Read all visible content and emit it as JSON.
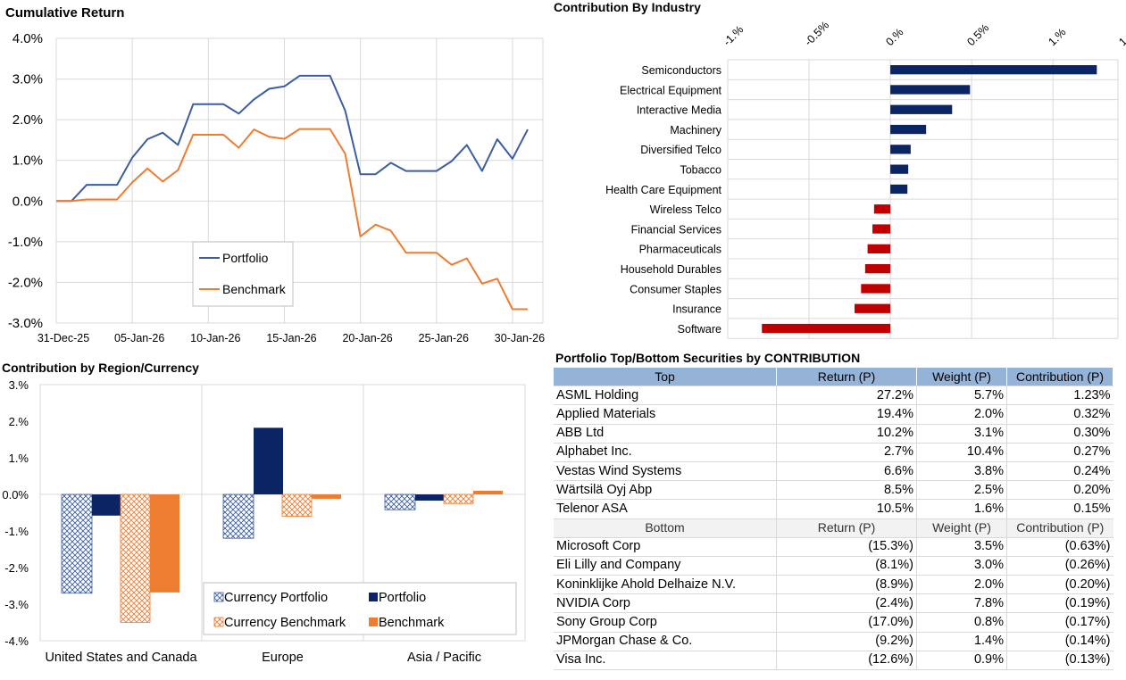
{
  "cumulative_return": {
    "title": "Cumulative Return"
  },
  "industry": {
    "title": "Contribution By Industry"
  },
  "region": {
    "title": "Contribution by Region/Currency"
  },
  "securities": {
    "title": "Portfolio Top/Bottom Securities by CONTRIBUTION",
    "top_header": [
      "Top",
      "Return (P)",
      "Weight (P)",
      "Contribution (P)"
    ],
    "top_rows": [
      [
        "ASML Holding",
        "27.2%",
        "5.7%",
        "1.23%"
      ],
      [
        "Applied Materials",
        "19.4%",
        "2.0%",
        "0.32%"
      ],
      [
        "ABB Ltd",
        "10.2%",
        "3.1%",
        "0.30%"
      ],
      [
        "Alphabet Inc.",
        "2.7%",
        "10.4%",
        "0.27%"
      ],
      [
        "Vestas Wind Systems",
        "6.6%",
        "3.8%",
        "0.24%"
      ],
      [
        "Wärtsilä Oyj Abp",
        "8.5%",
        "2.5%",
        "0.20%"
      ],
      [
        "Telenor ASA",
        "10.5%",
        "1.6%",
        "0.15%"
      ]
    ],
    "bottom_header": [
      "Bottom",
      "Return (P)",
      "Weight (P)",
      "Contribution (P)"
    ],
    "bottom_rows": [
      [
        "Microsoft Corp",
        "(15.3%)",
        "3.5%",
        "(0.63%)"
      ],
      [
        "Eli Lilly and Company",
        "(8.1%)",
        "3.0%",
        "(0.26%)"
      ],
      [
        "Koninklijke Ahold Delhaize N.V.",
        "(8.9%)",
        "2.0%",
        "(0.20%)"
      ],
      [
        "NVIDIA Corp",
        "(2.4%)",
        "7.8%",
        "(0.19%)"
      ],
      [
        "Sony Group Corp",
        "(17.0%)",
        "0.8%",
        "(0.17%)"
      ],
      [
        "JPMorgan Chase & Co.",
        "(9.2%)",
        "1.4%",
        "(0.14%)"
      ],
      [
        "Visa Inc.",
        "(12.6%)",
        "0.9%",
        "(0.13%)"
      ]
    ]
  },
  "chart_data": [
    {
      "type": "line",
      "title": "Cumulative Return",
      "x_tick_labels": [
        "31-Dec-25",
        "05-Jan-26",
        "10-Jan-26",
        "15-Jan-26",
        "20-Jan-26",
        "25-Jan-26",
        "30-Jan-26"
      ],
      "x_tick_positions": [
        0,
        5,
        10,
        15,
        20,
        25,
        30
      ],
      "y_tick_labels": [
        "4.0%",
        "3.0%",
        "2.0%",
        "1.0%",
        "0.0%",
        "-1.0%",
        "-2.0%",
        "-3.0%"
      ],
      "ylim": [
        -3.0,
        4.0
      ],
      "xlim": [
        0,
        32
      ],
      "grid": true,
      "legend_position": "lower-center",
      "series": [
        {
          "name": "Portfolio",
          "color": "#3b5ea0",
          "x": [
            0,
            1,
            2,
            3,
            4,
            5,
            6,
            7,
            8,
            9,
            10,
            11,
            12,
            13,
            14,
            15,
            16,
            17,
            18,
            19,
            20,
            21,
            22,
            23,
            24,
            25,
            26,
            27,
            28,
            29,
            30,
            31,
            32
          ],
          "y": [
            0.0,
            0.0,
            0.4,
            0.4,
            0.4,
            1.07,
            1.52,
            1.68,
            1.38,
            2.38,
            2.38,
            2.38,
            2.15,
            2.5,
            2.76,
            2.82,
            3.08,
            3.08,
            3.08,
            2.22,
            0.66,
            0.66,
            0.94,
            0.74,
            0.74,
            0.74,
            0.98,
            1.38,
            0.74,
            1.52,
            1.04,
            1.76,
            null
          ]
        },
        {
          "name": "Benchmark",
          "color": "#ed7d31",
          "x": [
            0,
            1,
            2,
            3,
            4,
            5,
            6,
            7,
            8,
            9,
            10,
            11,
            12,
            13,
            14,
            15,
            16,
            17,
            18,
            19,
            20,
            21,
            22,
            23,
            24,
            25,
            26,
            27,
            28,
            29,
            30,
            31,
            32
          ],
          "y": [
            0.0,
            0.0,
            0.04,
            0.04,
            0.04,
            0.46,
            0.8,
            0.48,
            0.76,
            1.63,
            1.63,
            1.63,
            1.31,
            1.76,
            1.58,
            1.53,
            1.77,
            1.77,
            1.77,
            1.16,
            -0.87,
            -0.58,
            -0.73,
            -1.27,
            -1.27,
            -1.27,
            -1.57,
            -1.41,
            -2.03,
            -1.91,
            -2.66,
            -2.66,
            null
          ]
        }
      ]
    },
    {
      "type": "bar",
      "orientation": "horizontal",
      "title": "Contribution By Industry",
      "categories": [
        "Semiconductors",
        "Electrical Equipment",
        "Interactive Media",
        "Machinery",
        "Diversified Telco",
        "Tobacco",
        "Health Care Equipment",
        "Wireless Telco",
        "Financial Services",
        "Pharmaceuticals",
        "Household Durables",
        "Consumer Staples",
        "Insurance",
        "Software"
      ],
      "values": [
        1.27,
        0.49,
        0.38,
        0.22,
        0.125,
        0.11,
        0.105,
        -0.1,
        -0.11,
        -0.14,
        -0.155,
        -0.18,
        -0.22,
        -0.79
      ],
      "positive_color": "#0b2463",
      "negative_color": "#c00000",
      "x_tick_labels": [
        "-1.%",
        "-0.5%",
        "0.%",
        "0.5%",
        "1.%",
        "1."
      ],
      "x_tick_values": [
        -1.0,
        -0.5,
        0.0,
        0.5,
        1.0,
        1.5
      ],
      "xlim": [
        -1.0,
        1.4
      ],
      "grid": true
    },
    {
      "type": "bar",
      "title": "Contribution by Region/Currency",
      "categories": [
        "United States and Canada",
        "Europe",
        "Asia / Pacific"
      ],
      "series": [
        {
          "name": "Currency Portfolio",
          "values": [
            -2.7,
            -1.2,
            -0.42
          ],
          "color": "#3b5ea0",
          "pattern": "crosshatch"
        },
        {
          "name": "Portfolio",
          "values": [
            -0.58,
            1.82,
            -0.17
          ],
          "color": "#0b2463"
        },
        {
          "name": "Currency Benchmark",
          "values": [
            -3.5,
            -0.6,
            -0.25
          ],
          "color": "#ed7d31",
          "pattern": "crosshatch"
        },
        {
          "name": "Benchmark",
          "values": [
            -2.68,
            -0.12,
            0.1
          ],
          "color": "#ed7d31"
        }
      ],
      "y_tick_labels": [
        "3.%",
        "2.%",
        "1.%",
        "0.0%",
        "-1.%",
        "-2.%",
        "-3.%",
        "-4.%"
      ],
      "ylim": [
        -4.0,
        3.0
      ],
      "legend_position": "lower-right",
      "grid": true
    }
  ]
}
